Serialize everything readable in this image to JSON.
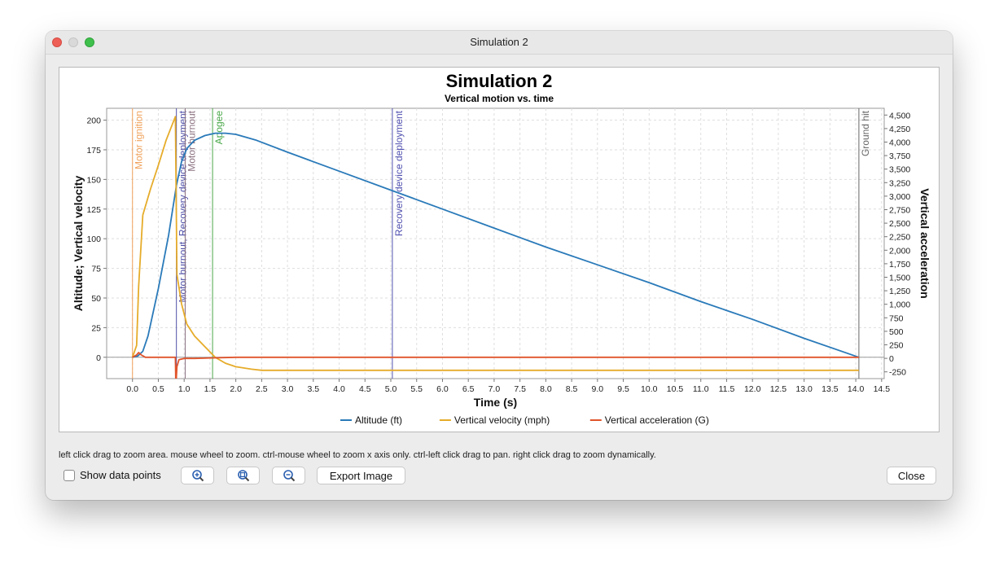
{
  "window": {
    "title": "Simulation 2"
  },
  "chart_data": {
    "type": "line",
    "title": "Simulation 2",
    "subtitle": "Vertical motion vs. time",
    "xlabel": "Time (s)",
    "ylabel_left": "Altitude; Vertical velocity",
    "ylabel_right": "Vertical acceleration",
    "xlim": [
      -0.5,
      14.55
    ],
    "ylim_left": [
      -18,
      210
    ],
    "ylim_right": [
      -375,
      4625
    ],
    "x_ticks": [
      "0.0",
      "0.5",
      "1.0",
      "1.5",
      "2.0",
      "2.5",
      "3.0",
      "3.5",
      "4.0",
      "4.5",
      "5.0",
      "5.5",
      "6.0",
      "6.5",
      "7.0",
      "7.5",
      "8.0",
      "8.5",
      "9.0",
      "9.5",
      "10.0",
      "10.5",
      "11.0",
      "11.5",
      "12.0",
      "12.5",
      "13.0",
      "13.5",
      "14.0",
      "14.5"
    ],
    "y_left_ticks": [
      "0",
      "25",
      "50",
      "75",
      "100",
      "125",
      "150",
      "175",
      "200"
    ],
    "y_right_ticks": [
      "-250",
      "0",
      "250",
      "500",
      "750",
      "1,000",
      "1,250",
      "1,500",
      "1,750",
      "2,000",
      "2,250",
      "2,500",
      "2,750",
      "3,000",
      "3,250",
      "3,500",
      "3,750",
      "4,000",
      "4,250",
      "4,500"
    ],
    "grid": true,
    "legend": "bottom",
    "series": [
      {
        "name": "Altitude (ft)",
        "axis": "left",
        "color": "#2a7ab9",
        "x": [
          0,
          0.1,
          0.2,
          0.3,
          0.5,
          0.7,
          0.85,
          0.95,
          1.05,
          1.2,
          1.4,
          1.6,
          1.8,
          2.0,
          2.4,
          3.0,
          4.0,
          5.0,
          6.0,
          7.0,
          8.0,
          9.0,
          10.0,
          11.0,
          12.0,
          13.0,
          14.06
        ],
        "y": [
          0,
          1,
          5,
          18,
          58,
          103,
          145,
          165,
          176,
          183,
          187,
          189,
          189,
          188,
          183,
          173,
          157,
          141,
          125,
          109,
          93,
          78,
          63,
          47,
          32,
          16,
          0
        ]
      },
      {
        "name": "Vertical velocity (mph)",
        "axis": "left",
        "color": "#e6ac2a",
        "x": [
          0,
          0.08,
          0.12,
          0.2,
          0.35,
          0.5,
          0.65,
          0.83,
          0.86,
          0.95,
          1.05,
          1.2,
          1.4,
          1.6,
          1.8,
          2.0,
          2.3,
          2.5,
          14.06
        ],
        "y": [
          0,
          10,
          60,
          120,
          142,
          162,
          183,
          203,
          70,
          45,
          28,
          18,
          9,
          0,
          -5,
          -8,
          -10,
          -11,
          -11
        ]
      },
      {
        "name": "Vertical acceleration (G)",
        "axis": "left",
        "color": "#e0542b",
        "x": [
          0,
          0.08,
          0.12,
          0.17,
          0.25,
          0.83,
          0.84,
          0.86,
          0.9,
          1.0,
          1.2,
          2.0,
          14.06
        ],
        "y": [
          0,
          2,
          4,
          2,
          0,
          0,
          -25,
          -8,
          -2,
          -1,
          -1,
          0,
          0
        ]
      }
    ],
    "events": [
      {
        "label": "Motor ignition",
        "x": 0.0,
        "color": "#f0a15a"
      },
      {
        "label": "Motor burnout, Recovery device deployment",
        "x": 0.85,
        "color": "#5050a8"
      },
      {
        "label": "Motor burnout",
        "x": 1.02,
        "color": "#8a7080"
      },
      {
        "label": "Apogee",
        "x": 1.55,
        "color": "#4aa84a"
      },
      {
        "label": "Recovery device deployment",
        "x": 5.03,
        "color": "#5050b0"
      },
      {
        "label": "Ground hit",
        "x": 14.06,
        "color": "#666666"
      }
    ]
  },
  "hint": "left click drag to zoom area. mouse wheel to zoom. ctrl-mouse wheel to zoom x axis only. ctrl-left click drag to pan.  right click drag to zoom dynamically.",
  "controls": {
    "show_points_label": "Show data points",
    "zoom_in_icon": "zoom-in-icon",
    "zoom_reset_icon": "zoom-reset-icon",
    "zoom_out_icon": "zoom-out-icon",
    "export_label": "Export Image",
    "close_label": "Close"
  }
}
